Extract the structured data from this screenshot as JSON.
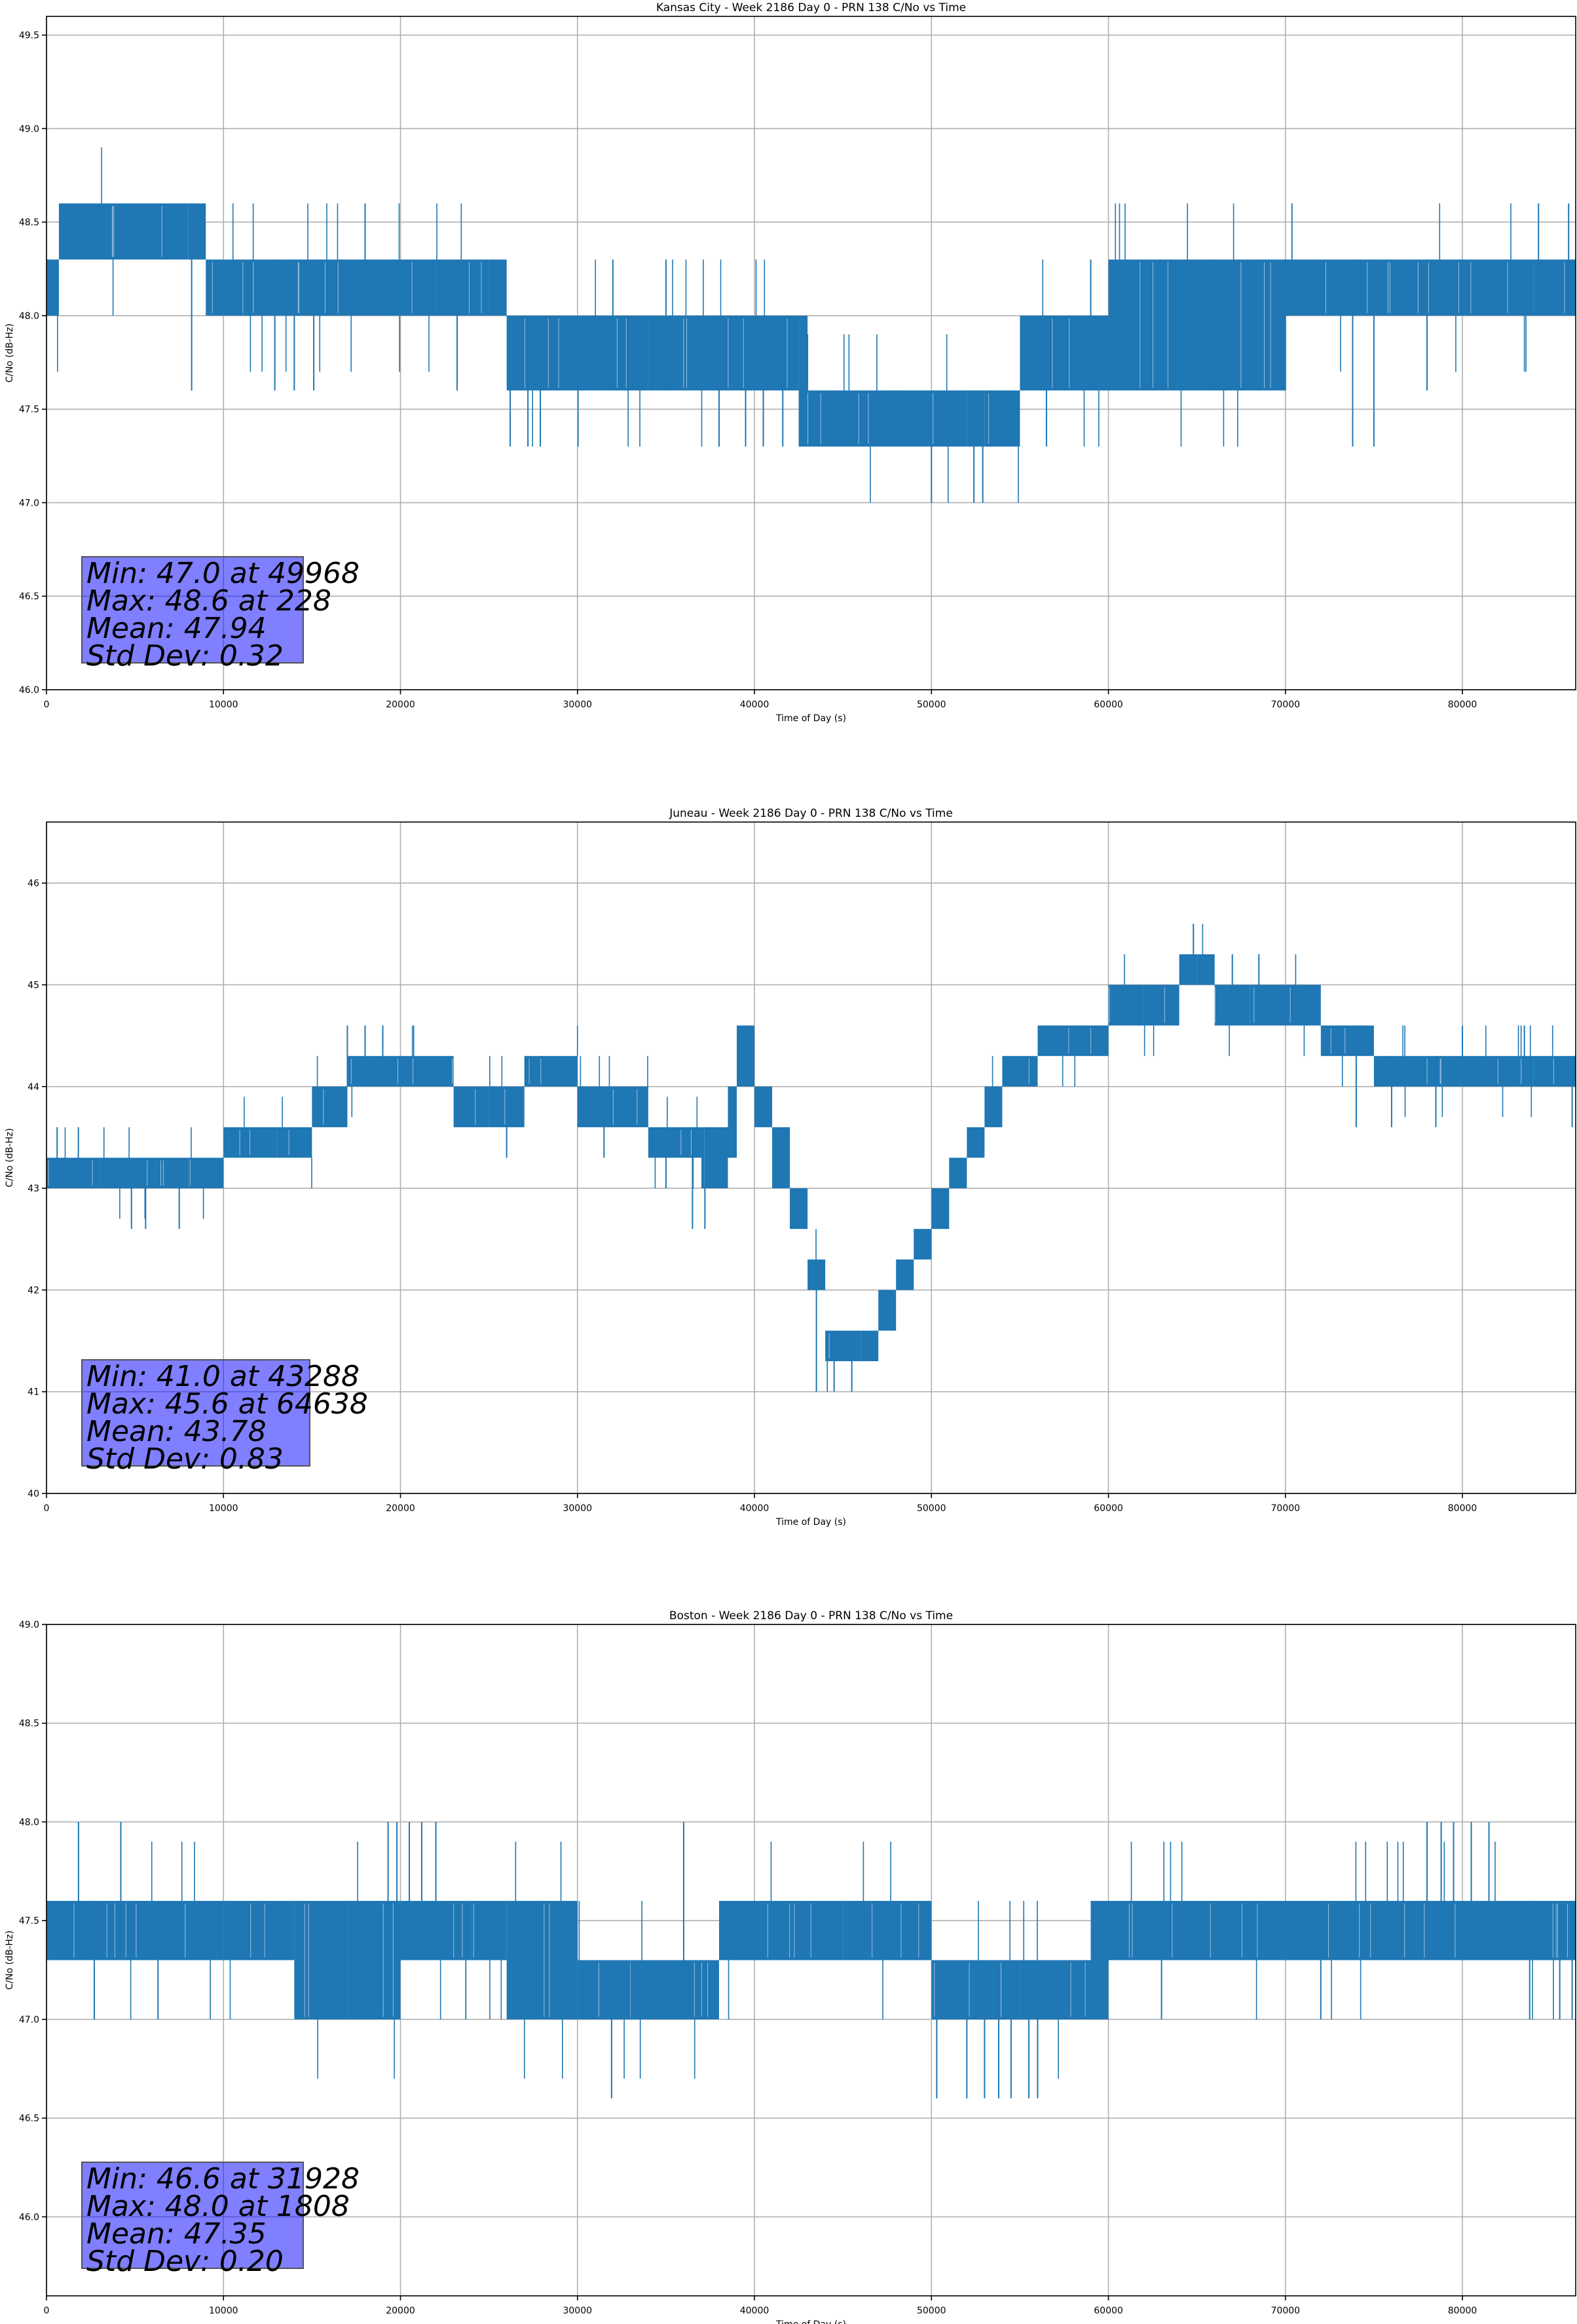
{
  "chart_data": [
    {
      "type": "line",
      "title": "Kansas City - Week 2186 Day 0 - PRN 138 C/No vs Time",
      "xlabel": "Time of Day (s)",
      "ylabel": "C/No (dB-Hz)",
      "xlim": [
        0,
        86400
      ],
      "ylim": [
        46.0,
        49.6
      ],
      "xticks": [
        0,
        10000,
        20000,
        30000,
        40000,
        50000,
        60000,
        70000,
        80000
      ],
      "xtick_labels": [
        "0",
        "10000",
        "20000",
        "30000",
        "40000",
        "50000",
        "60000",
        "70000",
        "80000"
      ],
      "yticks": [
        46.0,
        46.5,
        47.0,
        47.5,
        48.0,
        48.5,
        49.0,
        49.5
      ],
      "ytick_labels": [
        "46.0",
        "46.5",
        "47.0",
        "47.5",
        "48.0",
        "48.5",
        "49.0",
        "49.5"
      ],
      "grid": true,
      "color": "#1f77b4",
      "series": [
        {
          "name": "C/No",
          "x": [
            0,
            700,
            1000,
            8000,
            9000,
            14000,
            22000,
            25000,
            26000,
            34000,
            40000,
            42500,
            43000,
            50000,
            52000,
            53000,
            55000,
            56000,
            60000,
            70000,
            79000,
            84000,
            86400
          ],
          "low": [
            48.0,
            48.3,
            48.3,
            48.3,
            48.0,
            48.0,
            48.0,
            48.0,
            47.6,
            47.6,
            47.6,
            47.3,
            47.3,
            47.3,
            47.3,
            47.3,
            47.6,
            47.6,
            47.6,
            48.0,
            48.0,
            48.0,
            48.3
          ],
          "high": [
            48.3,
            48.6,
            48.6,
            48.6,
            48.3,
            48.3,
            48.3,
            48.3,
            48.0,
            48.0,
            48.0,
            48.0,
            47.6,
            47.6,
            47.6,
            47.6,
            48.0,
            48.0,
            48.3,
            48.3,
            48.3,
            48.3,
            48.6
          ],
          "spikes": [
            [
              8200,
              47.6
            ],
            [
              12900,
              47.6
            ],
            [
              14000,
              47.6
            ],
            [
              15100,
              47.6
            ],
            [
              18000,
              48.6
            ],
            [
              23200,
              47.6
            ],
            [
              26200,
              47.3
            ],
            [
              27200,
              47.3
            ],
            [
              27900,
              47.3
            ],
            [
              32000,
              48.3
            ],
            [
              35000,
              48.3
            ],
            [
              38000,
              47.3
            ],
            [
              39500,
              47.3
            ],
            [
              40500,
              47.3
            ],
            [
              41600,
              47.3
            ],
            [
              44500,
              47.6
            ],
            [
              48000,
              47.6
            ],
            [
              50000,
              47.0
            ],
            [
              52400,
              47.0
            ],
            [
              52900,
              47.0
            ],
            [
              53300,
              47.3
            ],
            [
              56500,
              47.3
            ],
            [
              59000,
              48.3
            ],
            [
              63000,
              48.3
            ],
            [
              66000,
              48.3
            ],
            [
              70000,
              47.6
            ],
            [
              73800,
              47.3
            ],
            [
              75000,
              47.3
            ],
            [
              78000,
              47.6
            ],
            [
              84300,
              48.6
            ],
            [
              86000,
              48.6
            ]
          ]
        }
      ],
      "stats": {
        "min_label": "Min: 47.0 at 49968",
        "max_label": "Max: 48.6 at 228",
        "mean_label": "Mean: 47.94",
        "std_label": "Std Dev: 0.32"
      }
    },
    {
      "type": "line",
      "title": "Juneau - Week 2186 Day 0 - PRN 138 C/No vs Time",
      "xlabel": "Time of Day (s)",
      "ylabel": "C/No (dB-Hz)",
      "xlim": [
        0,
        86400
      ],
      "ylim": [
        40,
        46.6
      ],
      "xticks": [
        0,
        10000,
        20000,
        30000,
        40000,
        50000,
        60000,
        70000,
        80000
      ],
      "xtick_labels": [
        "0",
        "10000",
        "20000",
        "30000",
        "40000",
        "50000",
        "60000",
        "70000",
        "80000"
      ],
      "yticks": [
        40,
        41,
        42,
        43,
        44,
        45,
        46
      ],
      "ytick_labels": [
        "40",
        "41",
        "42",
        "43",
        "44",
        "45",
        "46"
      ],
      "grid": true,
      "color": "#1f77b4",
      "series": [
        {
          "name": "C/No",
          "x": [
            0,
            3000,
            8000,
            10000,
            13000,
            15000,
            17000,
            20000,
            23000,
            25000,
            27000,
            30000,
            34000,
            37000,
            38500,
            39000,
            40000,
            41000,
            42000,
            43000,
            44000,
            46000,
            47000,
            48000,
            49000,
            50000,
            51000,
            52000,
            53000,
            54000,
            56000,
            58000,
            60000,
            62000,
            64000,
            65000,
            66000,
            68000,
            70000,
            72000,
            75000,
            80000,
            84000,
            86400
          ],
          "low": [
            43.0,
            43.0,
            43.0,
            43.3,
            43.3,
            43.6,
            44.0,
            44.0,
            43.6,
            43.6,
            44.0,
            43.6,
            43.3,
            43.0,
            43.3,
            44.0,
            43.6,
            43.0,
            42.6,
            42.0,
            41.3,
            41.3,
            41.6,
            42.0,
            42.3,
            42.6,
            43.0,
            43.3,
            43.6,
            44.0,
            44.3,
            44.3,
            44.6,
            44.6,
            45.0,
            45.0,
            44.6,
            44.6,
            44.6,
            44.3,
            44.0,
            44.0,
            44.0,
            44.0
          ],
          "high": [
            43.3,
            43.3,
            43.3,
            43.6,
            43.6,
            44.0,
            44.3,
            44.3,
            44.0,
            44.0,
            44.3,
            44.0,
            43.6,
            43.6,
            44.0,
            44.6,
            44.0,
            43.6,
            43.0,
            42.3,
            41.6,
            41.6,
            42.0,
            42.3,
            42.6,
            43.0,
            43.3,
            43.6,
            44.0,
            44.3,
            44.6,
            44.6,
            45.0,
            45.0,
            45.3,
            45.3,
            45.0,
            45.0,
            45.0,
            44.6,
            44.3,
            44.3,
            44.3,
            44.3
          ],
          "spikes": [
            [
              600,
              43.6
            ],
            [
              1800,
              43.6
            ],
            [
              4800,
              42.6
            ],
            [
              5600,
              42.6
            ],
            [
              7500,
              42.6
            ],
            [
              17000,
              44.6
            ],
            [
              18000,
              44.6
            ],
            [
              19000,
              44.6
            ],
            [
              26000,
              43.3
            ],
            [
              28000,
              44.3
            ],
            [
              31500,
              43.3
            ],
            [
              35000,
              43.0
            ],
            [
              36500,
              42.6
            ],
            [
              37200,
              42.6
            ],
            [
              43500,
              41.0
            ],
            [
              44500,
              41.0
            ],
            [
              45500,
              41.0
            ],
            [
              64800,
              45.6
            ],
            [
              67000,
              45.3
            ],
            [
              68500,
              45.3
            ],
            [
              74000,
              43.6
            ],
            [
              76000,
              43.6
            ],
            [
              78500,
              43.6
            ],
            [
              80000,
              44.6
            ],
            [
              83500,
              44.6
            ],
            [
              86200,
              43.6
            ]
          ]
        }
      ],
      "stats": {
        "min_label": "Min: 41.0 at 43288",
        "max_label": "Max: 45.6 at 64638",
        "mean_label": "Mean: 43.78",
        "std_label": "Std Dev: 0.83"
      }
    },
    {
      "type": "line",
      "title": "Boston - Week 2186 Day 0 - PRN 138 C/No vs Time",
      "xlabel": "Time of Day (s)",
      "ylabel": "C/No (dB-Hz)",
      "xlim": [
        0,
        86400
      ],
      "ylim": [
        45.6,
        49.0
      ],
      "xticks": [
        0,
        10000,
        20000,
        30000,
        40000,
        50000,
        60000,
        70000,
        80000
      ],
      "xtick_labels": [
        "0",
        "10000",
        "20000",
        "30000",
        "40000",
        "50000",
        "60000",
        "70000",
        "80000"
      ],
      "yticks": [
        46.0,
        46.5,
        47.0,
        47.5,
        48.0,
        48.5,
        49.0
      ],
      "ytick_labels": [
        "46.0",
        "46.5",
        "47.0",
        "47.5",
        "48.0",
        "48.5",
        "49.0"
      ],
      "grid": true,
      "color": "#1f77b4",
      "series": [
        {
          "name": "C/No",
          "x": [
            0,
            10000,
            14000,
            17000,
            20000,
            24000,
            26000,
            30000,
            33000,
            38000,
            45000,
            50000,
            55000,
            59000,
            60000,
            70000,
            80000,
            86400
          ],
          "low": [
            47.3,
            47.3,
            47.0,
            47.0,
            47.3,
            47.3,
            47.0,
            47.0,
            47.0,
            47.3,
            47.3,
            47.0,
            47.0,
            47.0,
            47.3,
            47.3,
            47.3,
            47.3
          ],
          "high": [
            47.6,
            47.6,
            47.6,
            47.6,
            47.6,
            47.6,
            47.6,
            47.3,
            47.3,
            47.6,
            47.6,
            47.3,
            47.3,
            47.6,
            47.6,
            47.6,
            47.6,
            47.6
          ],
          "spikes": [
            [
              1808,
              48.0
            ],
            [
              2700,
              47.0
            ],
            [
              4200,
              48.0
            ],
            [
              6300,
              47.0
            ],
            [
              19300,
              48.0
            ],
            [
              19800,
              48.0
            ],
            [
              20500,
              48.0
            ],
            [
              21200,
              48.0
            ],
            [
              22000,
              48.0
            ],
            [
              31928,
              46.6
            ],
            [
              36000,
              48.0
            ],
            [
              50300,
              46.6
            ],
            [
              52000,
              46.6
            ],
            [
              53000,
              46.6
            ],
            [
              53800,
              46.6
            ],
            [
              54500,
              46.6
            ],
            [
              55500,
              46.6
            ],
            [
              56000,
              46.6
            ],
            [
              58200,
              47.0
            ],
            [
              63000,
              47.0
            ],
            [
              72000,
              47.0
            ],
            [
              78000,
              48.0
            ],
            [
              78800,
              48.0
            ],
            [
              79500,
              48.0
            ],
            [
              80500,
              48.0
            ],
            [
              81500,
              48.0
            ],
            [
              83800,
              47.0
            ],
            [
              85500,
              47.0
            ],
            [
              86200,
              47.0
            ]
          ]
        }
      ],
      "stats": {
        "min_label": "Min: 46.6 at 31928",
        "max_label": "Max: 48.0 at 1808",
        "mean_label": "Mean: 47.35",
        "std_label": "Std Dev: 0.20"
      }
    }
  ]
}
